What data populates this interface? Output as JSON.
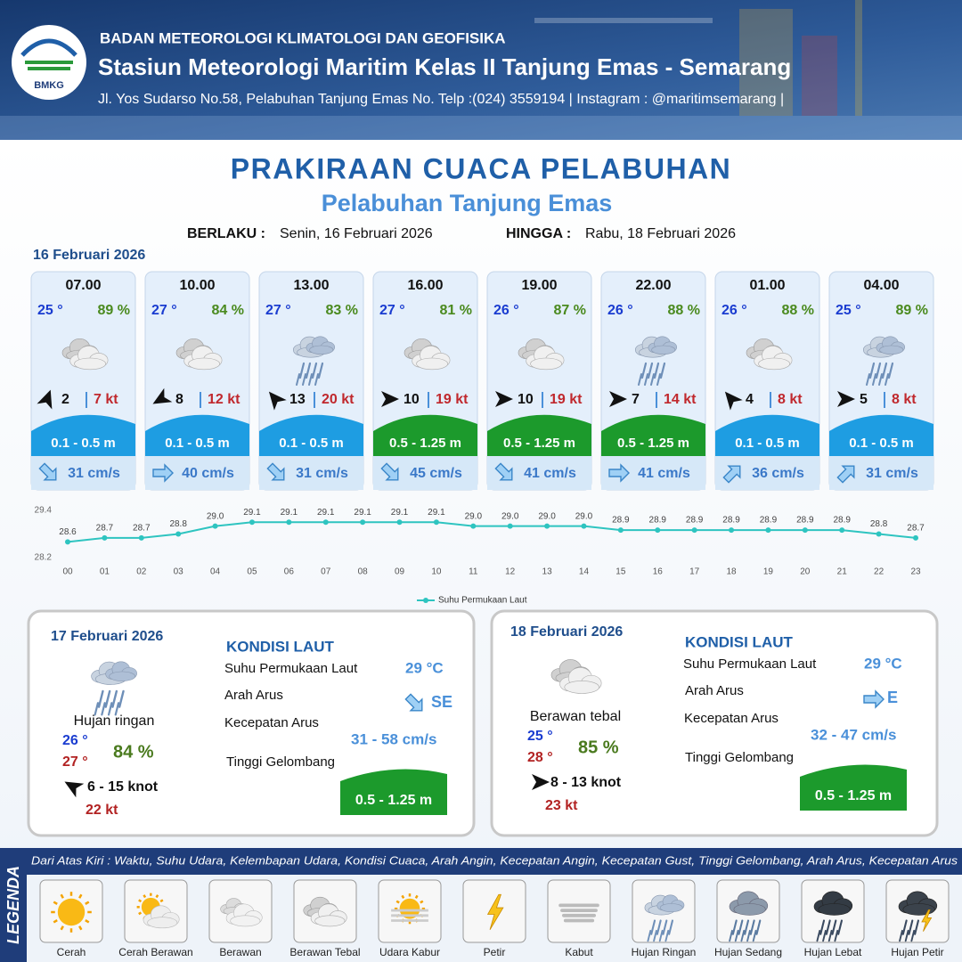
{
  "header": {
    "logo_text": "BMKG",
    "organization": "BADAN METEOROLOGI KLIMATOLOGI DAN GEOFISIKA",
    "station": "Stasiun Meteorologi Maritim Kelas II Tanjung Emas - Semarang",
    "address": "Jl. Yos Sudarso No.58, Pelabuhan Tanjung Emas No. Telp :(024) 3559194 | Instagram : @maritimsemarang |"
  },
  "title": "PRAKIRAAN CUACA PELABUHAN",
  "subtitle": "Pelabuhan Tanjung Emas",
  "validity": {
    "from_label": "BERLAKU :",
    "from": "Senin, 16 Februari 2026",
    "to_label": "HINGGA :",
    "to": "Rabu, 18 Februari 2026"
  },
  "day1": {
    "date": "16 Februari 2026",
    "cards": [
      {
        "time": "07.00",
        "temperature": "25 °",
        "humidity": "89 %",
        "wind": "2",
        "gust": "7 kt",
        "wave": "0.1 - 0.5 m",
        "current": "31 cm/s"
      },
      {
        "time": "10.00",
        "temperature": "27 °",
        "humidity": "84 %",
        "wind": "8",
        "gust": "12 kt",
        "wave": "0.1 - 0.5 m",
        "current": "40 cm/s"
      },
      {
        "time": "13.00",
        "temperature": "27 °",
        "humidity": "83 %",
        "wind": "13",
        "gust": "20 kt",
        "wave": "0.1 - 0.5 m",
        "current": "31 cm/s"
      },
      {
        "time": "16.00",
        "temperature": "27 °",
        "humidity": "81 %",
        "wind": "10",
        "gust": "19 kt",
        "wave": "0.5 - 1.25 m",
        "current": "45 cm/s"
      },
      {
        "time": "19.00",
        "temperature": "26 °",
        "humidity": "87 %",
        "wind": "10",
        "gust": "19 kt",
        "wave": "0.5 - 1.25 m",
        "current": "41 cm/s"
      },
      {
        "time": "22.00",
        "temperature": "26 °",
        "humidity": "88 %",
        "wind": "7",
        "gust": "14 kt",
        "wave": "0.5 - 1.25 m",
        "current": "41 cm/s"
      },
      {
        "time": "01.00",
        "temperature": "26 °",
        "humidity": "88 %",
        "wind": "4",
        "gust": "8 kt",
        "wave": "0.1 - 0.5 m",
        "current": "36 cm/s"
      },
      {
        "time": "04.00",
        "temperature": "25 °",
        "humidity": "89 %",
        "wind": "5",
        "gust": "8 kt",
        "wave": "0.1 - 0.5 m",
        "current": "31 cm/s"
      }
    ]
  },
  "chart_data": {
    "type": "line",
    "categories": [
      "00",
      "01",
      "02",
      "03",
      "04",
      "05",
      "06",
      "07",
      "08",
      "09",
      "10",
      "11",
      "12",
      "13",
      "14",
      "15",
      "16",
      "17",
      "18",
      "19",
      "20",
      "21",
      "22",
      "23"
    ],
    "series": [
      {
        "name": "Suhu Permukaan Laut",
        "color": "#2ec4c0",
        "values": [
          28.6,
          28.7,
          28.7,
          28.8,
          29.0,
          29.1,
          29.1,
          29.1,
          29.1,
          29.1,
          29.1,
          29.0,
          29.0,
          29.0,
          29.0,
          28.9,
          28.9,
          28.9,
          28.9,
          28.9,
          28.9,
          28.9,
          28.8,
          28.7
        ],
        "value_labels": [
          "28.6",
          "28.7",
          "28.7",
          "28.8",
          "29.0",
          "29.1",
          "29.1",
          "29.1",
          "29.1",
          "29.1",
          "29.1",
          "29.0",
          "29.0",
          "29.0",
          "29.0",
          "28.9",
          "28.9",
          "28.9",
          "28.9",
          "28.9",
          "28.9",
          "28.9",
          "28.8",
          "28.7"
        ]
      }
    ],
    "ylim": [
      28.2,
      29.4
    ],
    "yticks": [
      28.2,
      29.4
    ],
    "grid": false
  },
  "days": [
    {
      "date": "17 Februari 2026",
      "condition": "Hujan ringan",
      "temperature_min": "26 °",
      "temperature_max": "27 °",
      "humidity": "84 %",
      "wind": "6  - 15 knot",
      "gust": "22 kt",
      "sea_title": "KONDISI LAUT",
      "sst_label": "Suhu Permukaan Laut",
      "sst": "29 °C",
      "current_direction_label": "Arah Arus",
      "current_direction": "SE",
      "current_speed_label": "Kecepatan Arus",
      "current_speed": "31 - 58 cm/s",
      "wave_label": "Tinggi Gelombang",
      "wave": "0.5 - 1.25 m"
    },
    {
      "date": "18 Februari 2026",
      "condition": "Berawan tebal",
      "temperature_min": "25 °",
      "temperature_max": "28 °",
      "humidity": "85 %",
      "wind": "8  - 13 knot",
      "gust": "23 kt",
      "sea_title": "KONDISI LAUT",
      "sst_label": "Suhu Permukaan Laut",
      "sst": "29 °C",
      "current_direction_label": "Arah Arus",
      "current_direction": "E",
      "current_speed_label": "Kecepatan Arus",
      "current_speed": "32 - 47 cm/s",
      "wave_label": "Tinggi Gelombang",
      "wave": "0.5 - 1.25 m"
    }
  ],
  "legend": {
    "title": "LEGENDA",
    "description": "Dari Atas Kiri : Waktu, Suhu Udara, Kelembapan Udara, Kondisi Cuaca, Arah Angin, Kecepatan Angin, Kecepatan Gust, Tinggi Gelombang, Arah Arus, Kecepatan Arus",
    "items": [
      "Cerah",
      "Cerah Berawan",
      "Berawan",
      "Berawan Tebal",
      "Udara Kabur",
      "Petir",
      "Kabut",
      "Hujan Ringan",
      "Hujan Sedang",
      "Hujan Lebat",
      "Hujan Petir"
    ]
  }
}
